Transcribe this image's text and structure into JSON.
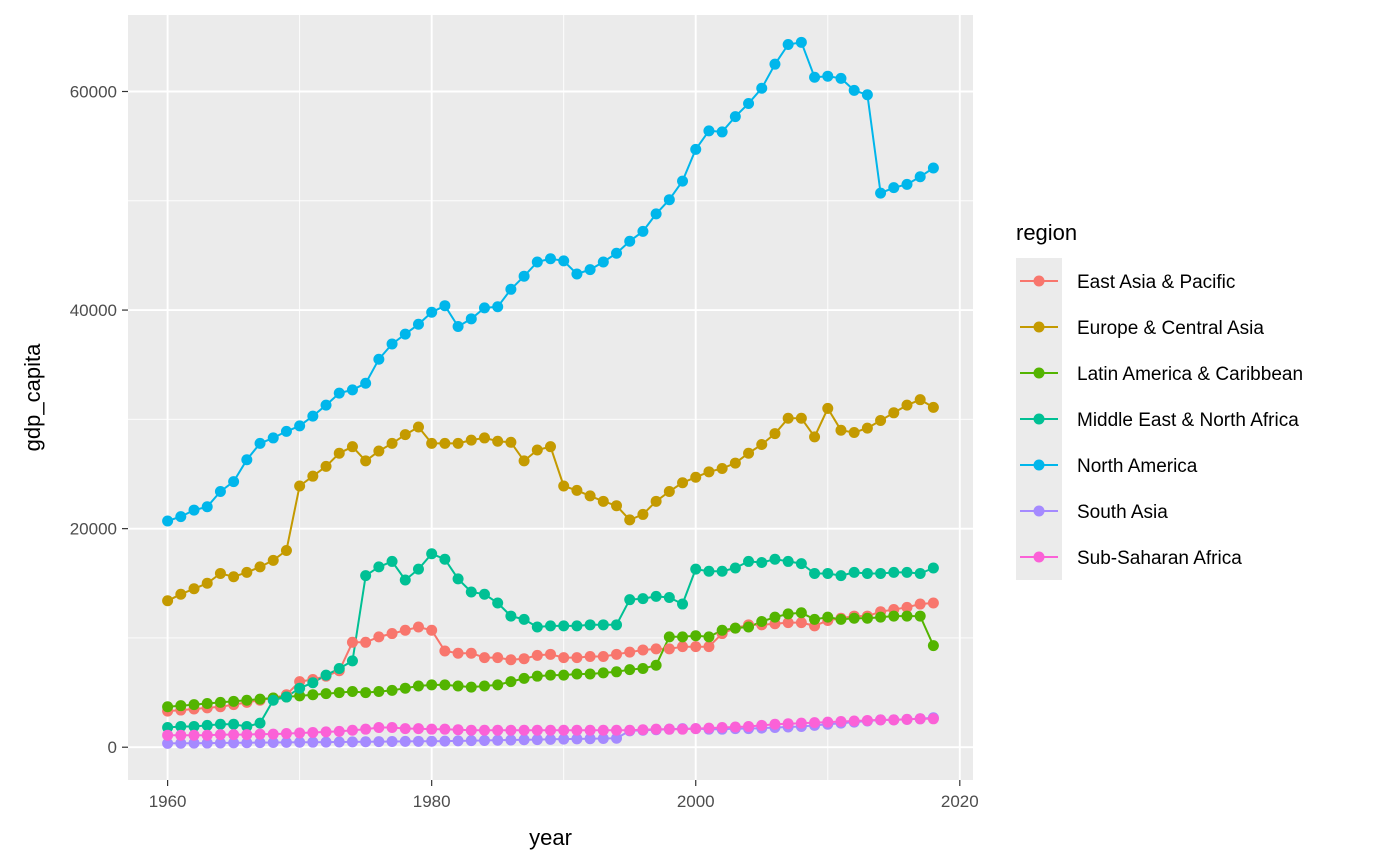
{
  "chart_data": {
    "type": "line",
    "xlabel": "year",
    "ylabel": "gdp_capita",
    "xlim": [
      1957,
      2021
    ],
    "ylim": [
      -3000,
      67000
    ],
    "x_ticks": [
      1960,
      1980,
      2000,
      2020
    ],
    "y_ticks": [
      0,
      20000,
      40000,
      60000
    ],
    "x_tick_labels": [
      "1960",
      "1980",
      "2000",
      "2020"
    ],
    "y_tick_labels": [
      "0",
      "20000",
      "40000",
      "60000"
    ],
    "grid": true,
    "markers": true,
    "legend_title": "region",
    "legend_position": "right",
    "x": [
      1960,
      1961,
      1962,
      1963,
      1964,
      1965,
      1966,
      1967,
      1968,
      1969,
      1970,
      1971,
      1972,
      1973,
      1974,
      1975,
      1976,
      1977,
      1978,
      1979,
      1980,
      1981,
      1982,
      1983,
      1984,
      1985,
      1986,
      1987,
      1988,
      1989,
      1990,
      1991,
      1992,
      1993,
      1994,
      1995,
      1996,
      1997,
      1998,
      1999,
      2000,
      2001,
      2002,
      2003,
      2004,
      2005,
      2006,
      2007,
      2008,
      2009,
      2010,
      2011,
      2012,
      2013,
      2014,
      2015,
      2016,
      2017,
      2018
    ],
    "series": [
      {
        "name": "East Asia & Pacific",
        "color": "#F8766D",
        "values": [
          3300,
          3400,
          3500,
          3600,
          3700,
          3900,
          4100,
          4300,
          4500,
          4800,
          6000,
          6200,
          6500,
          7000,
          9600,
          9600,
          10100,
          10400,
          10700,
          11000,
          10700,
          8800,
          8600,
          8600,
          8200,
          8200,
          8000,
          8100,
          8400,
          8500,
          8200,
          8200,
          8300,
          8300,
          8500,
          8700,
          8900,
          9000,
          9000,
          9200,
          9200,
          9200,
          10400,
          10900,
          11200,
          11200,
          11300,
          11400,
          11400,
          11100,
          11600,
          11800,
          12000,
          12000,
          12400,
          12600,
          12800,
          13100,
          13200
        ]
      },
      {
        "name": "Europe & Central Asia",
        "color": "#C49A00",
        "values": [
          13400,
          14000,
          14500,
          15000,
          15900,
          15600,
          16000,
          16500,
          17100,
          18000,
          23900,
          24800,
          25700,
          26900,
          27500,
          26200,
          27100,
          27800,
          28600,
          29300,
          27800,
          27800,
          27800,
          28100,
          28300,
          28000,
          27900,
          26200,
          27200,
          27500,
          23900,
          23500,
          23000,
          22500,
          22100,
          20800,
          21300,
          22500,
          23400,
          24200,
          24700,
          25200,
          25500,
          26000,
          26900,
          27700,
          28700,
          30100,
          30100,
          28400,
          31000,
          29000,
          28800,
          29200,
          29900,
          30600,
          31300,
          31800,
          31100
        ]
      },
      {
        "name": "Latin America & Caribbean",
        "color": "#53B400",
        "values": [
          3700,
          3800,
          3900,
          4000,
          4100,
          4200,
          4300,
          4400,
          4500,
          4600,
          4700,
          4800,
          4900,
          5000,
          5100,
          5000,
          5100,
          5200,
          5400,
          5600,
          5700,
          5700,
          5600,
          5500,
          5600,
          5700,
          6000,
          6300,
          6500,
          6600,
          6600,
          6700,
          6700,
          6800,
          6900,
          7100,
          7200,
          7500,
          10100,
          10100,
          10200,
          10100,
          10700,
          10900,
          11000,
          11500,
          11900,
          12200,
          12300,
          11700,
          11900,
          11700,
          11800,
          11800,
          11900,
          12000,
          12000,
          12000,
          9300
        ]
      },
      {
        "name": "Middle East & North Africa",
        "color": "#00C094",
        "values": [
          1800,
          1900,
          1900,
          2000,
          2100,
          2100,
          1900,
          2200,
          4300,
          4600,
          5400,
          5900,
          6600,
          7200,
          7900,
          15700,
          16500,
          17000,
          15300,
          16300,
          17700,
          17200,
          15400,
          14200,
          14000,
          13200,
          12000,
          11700,
          11000,
          11100,
          11100,
          11100,
          11200,
          11200,
          11200,
          13500,
          13600,
          13800,
          13700,
          13100,
          16300,
          16100,
          16100,
          16400,
          17000,
          16900,
          17200,
          17000,
          16800,
          15900,
          15900,
          15700,
          16000,
          15900,
          15900,
          16000,
          16000,
          15900,
          16400
        ]
      },
      {
        "name": "North America",
        "color": "#00B6EB",
        "values": [
          20700,
          21100,
          21700,
          22000,
          23400,
          24300,
          26300,
          27800,
          28300,
          28900,
          29400,
          30300,
          31300,
          32400,
          32700,
          33300,
          35500,
          36900,
          37800,
          38700,
          39800,
          40400,
          38500,
          39200,
          40200,
          40300,
          41900,
          43100,
          44400,
          44700,
          44500,
          43300,
          43700,
          44400,
          45200,
          46300,
          47200,
          48800,
          50100,
          51800,
          54700,
          56400,
          56300,
          57700,
          58900,
          60300,
          62500,
          64300,
          64500,
          61300,
          61400,
          61200,
          60100,
          59700,
          50700,
          51200,
          51500,
          52200,
          53000
        ]
      },
      {
        "name": "South Asia",
        "color": "#A58AFF",
        "values": [
          350,
          360,
          370,
          380,
          390,
          400,
          410,
          420,
          430,
          440,
          450,
          460,
          470,
          480,
          490,
          500,
          510,
          520,
          530,
          540,
          550,
          560,
          580,
          600,
          620,
          640,
          660,
          680,
          700,
          720,
          740,
          760,
          780,
          800,
          820,
          1500,
          1550,
          1600,
          1650,
          1700,
          1700,
          1650,
          1650,
          1700,
          1700,
          1750,
          1800,
          1850,
          1900,
          2000,
          2100,
          2200,
          2300,
          2400,
          2500,
          2500,
          2550,
          2600,
          2700
        ]
      },
      {
        "name": "Sub-Saharan Africa",
        "color": "#FB61D7",
        "values": [
          1100,
          1100,
          1100,
          1100,
          1150,
          1150,
          1150,
          1200,
          1200,
          1250,
          1300,
          1350,
          1400,
          1450,
          1550,
          1650,
          1800,
          1800,
          1700,
          1700,
          1650,
          1650,
          1600,
          1550,
          1550,
          1550,
          1550,
          1550,
          1550,
          1550,
          1550,
          1550,
          1550,
          1550,
          1550,
          1550,
          1600,
          1650,
          1650,
          1650,
          1700,
          1750,
          1800,
          1850,
          1900,
          2000,
          2100,
          2150,
          2200,
          2250,
          2300,
          2350,
          2400,
          2450,
          2500,
          2500,
          2550,
          2600,
          2600
        ]
      }
    ]
  }
}
